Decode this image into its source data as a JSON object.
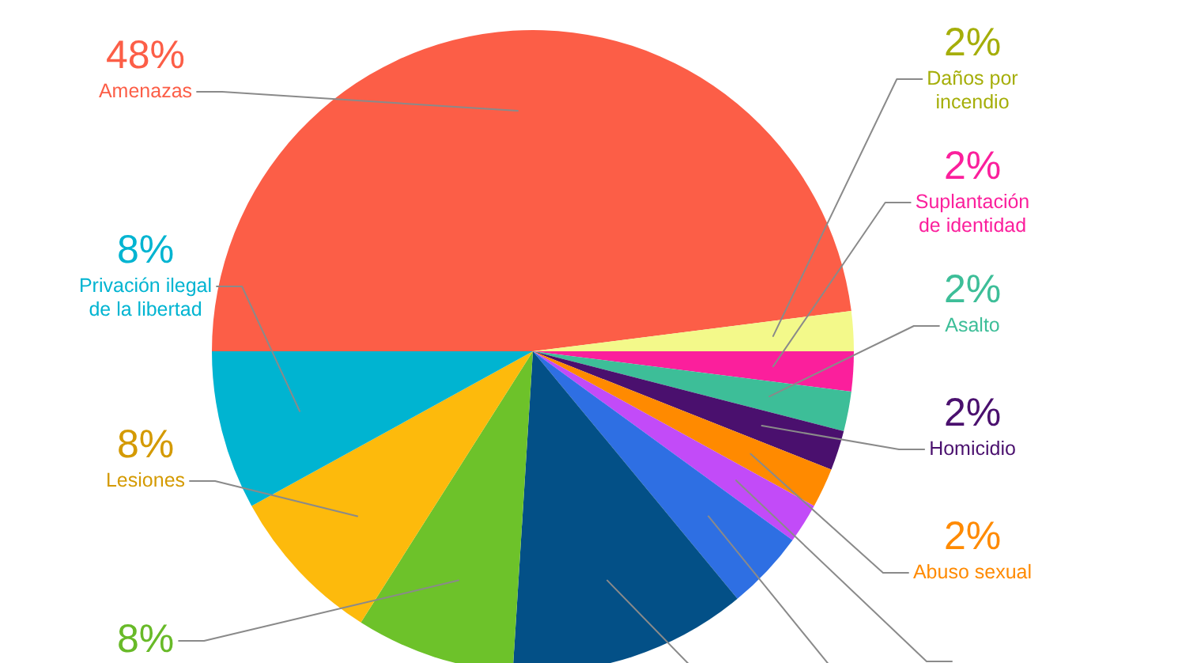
{
  "chart_data": {
    "type": "pie",
    "categories": [
      "Amenazas",
      "Daños por incendio",
      "Suplantación de identidad",
      "Asalto",
      "Homicidio",
      "Abuso sexual",
      null,
      null,
      null,
      null,
      "Lesiones",
      "Privación ilegal de la libertad"
    ],
    "values": [
      48,
      2,
      2,
      2,
      2,
      2,
      2,
      4,
      12,
      8,
      8,
      8
    ],
    "colors": [
      "#fc5e47",
      "#f3f98a",
      "#fb1f9c",
      "#3dbe98",
      "#4a106e",
      "#ff8a00",
      "#c24bf8",
      "#2e6fe3",
      "#035087",
      "#6dc22a",
      "#fdba0c",
      "#00b4d1"
    ],
    "value_labels": [
      "48%",
      "2%",
      "2%",
      "2%",
      "2%",
      "2%",
      null,
      null,
      null,
      "8%",
      "8%",
      "8%"
    ]
  }
}
